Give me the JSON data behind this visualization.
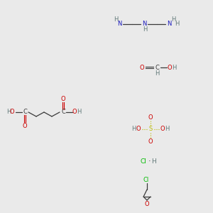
{
  "bg_color": "#eaeaea",
  "atom_colors": {
    "C": "#3a3a3a",
    "N": "#1515bb",
    "O": "#cc0000",
    "H": "#607878",
    "S": "#bbbb00",
    "Cl": "#00bb00"
  },
  "figsize": [
    3.0,
    3.0
  ],
  "dpi": 100
}
